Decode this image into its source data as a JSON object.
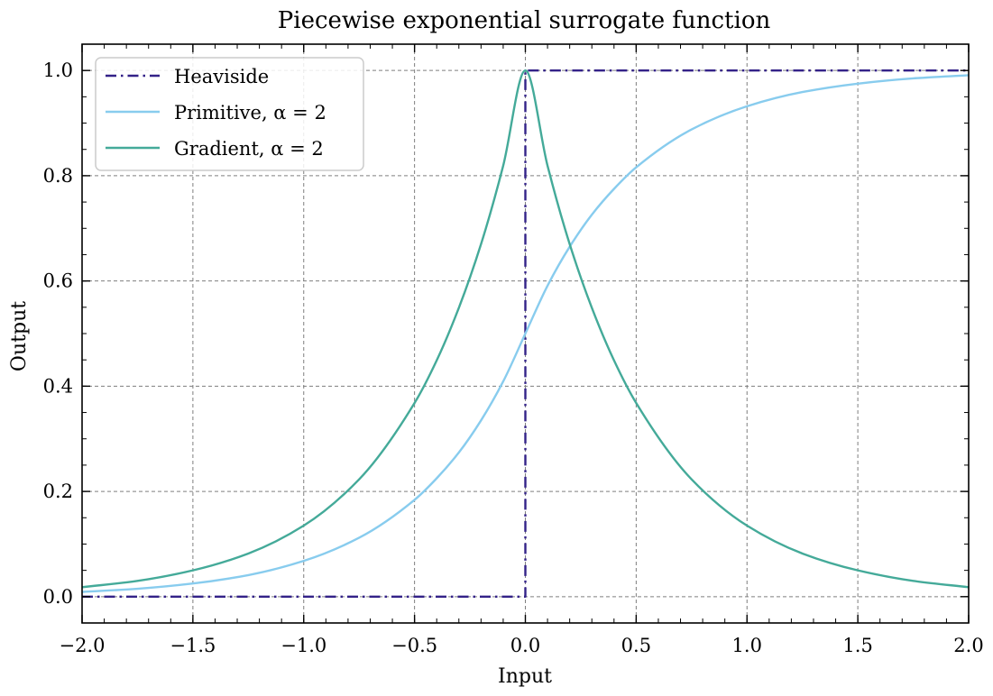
{
  "chart_data": {
    "type": "line",
    "title": "Piecewise exponential surrogate function",
    "xlabel": "Input",
    "ylabel": "Output",
    "xlim": [
      -2.0,
      2.0
    ],
    "ylim": [
      -0.05,
      1.05
    ],
    "grid": true,
    "legend_position": "top-left",
    "x_ticks": [
      -2.0,
      -1.5,
      -1.0,
      -0.5,
      0.0,
      0.5,
      1.0,
      1.5,
      2.0
    ],
    "x_tick_labels": [
      "−2.0",
      "−1.5",
      "−1.0",
      "−0.5",
      "0.0",
      "0.5",
      "1.0",
      "1.5",
      "2.0"
    ],
    "y_ticks": [
      0.0,
      0.2,
      0.4,
      0.6,
      0.8,
      1.0
    ],
    "y_tick_labels": [
      "0.0",
      "0.2",
      "0.4",
      "0.6",
      "0.8",
      "1.0"
    ],
    "series": [
      {
        "name": "Heaviside",
        "color": "#332288",
        "style": "dashdot",
        "x": [
          -2.0,
          0.0,
          0.0,
          2.0
        ],
        "y": [
          0.0,
          0.0,
          1.0,
          1.0
        ]
      },
      {
        "name": "Primitive, α = 2",
        "color": "#88ccee",
        "style": "solid",
        "x": [
          -2.0,
          -1.75,
          -1.5,
          -1.25,
          -1.0,
          -0.75,
          -0.5,
          -0.4,
          -0.3,
          -0.2,
          -0.1,
          0.0,
          0.1,
          0.2,
          0.3,
          0.4,
          0.5,
          0.75,
          1.0,
          1.25,
          1.5,
          1.75,
          2.0
        ],
        "y": [
          0.009,
          0.015,
          0.025,
          0.041,
          0.068,
          0.112,
          0.184,
          0.225,
          0.274,
          0.335,
          0.409,
          0.5,
          0.591,
          0.665,
          0.726,
          0.775,
          0.816,
          0.888,
          0.932,
          0.959,
          0.975,
          0.985,
          0.991
        ]
      },
      {
        "name": "Gradient, α = 2",
        "color": "#44aa99",
        "style": "solid",
        "x": [
          -2.0,
          -1.75,
          -1.5,
          -1.25,
          -1.0,
          -0.75,
          -0.5,
          -0.4,
          -0.3,
          -0.2,
          -0.1,
          0.0,
          0.1,
          0.2,
          0.3,
          0.4,
          0.5,
          0.75,
          1.0,
          1.25,
          1.5,
          1.75,
          2.0
        ],
        "y": [
          0.018,
          0.03,
          0.05,
          0.082,
          0.135,
          0.223,
          0.368,
          0.449,
          0.549,
          0.67,
          0.819,
          1.0,
          0.819,
          0.67,
          0.549,
          0.449,
          0.368,
          0.223,
          0.135,
          0.082,
          0.05,
          0.03,
          0.018
        ]
      }
    ]
  }
}
